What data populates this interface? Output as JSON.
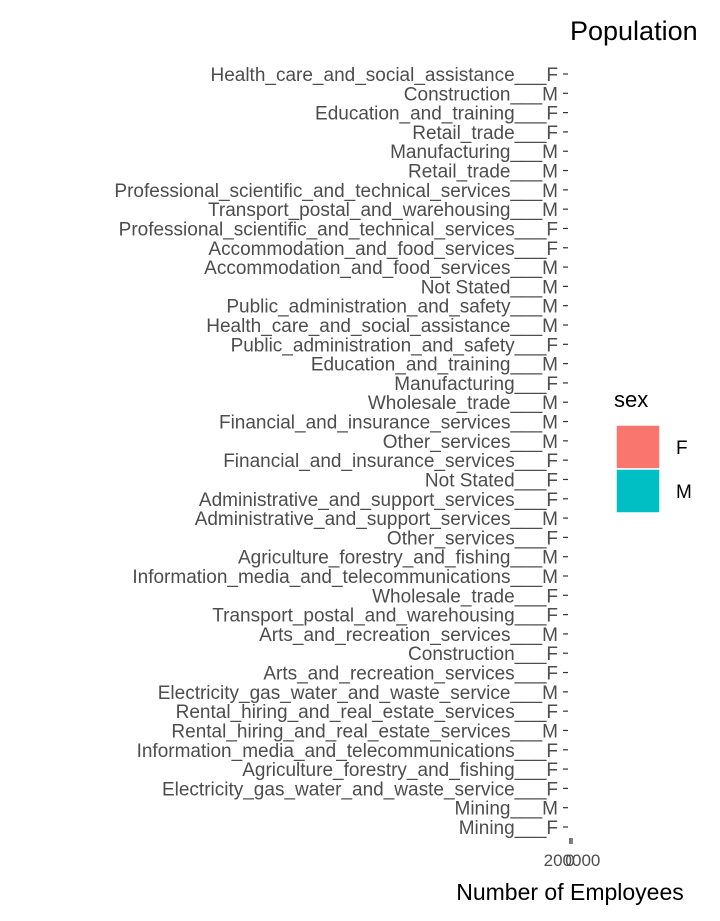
{
  "chart_data": {
    "type": "bar",
    "orientation": "horizontal",
    "title": "Population",
    "xlabel": "Number of Employees",
    "ylabel": "",
    "x_tick_labels": [
      "0",
      "200000"
    ],
    "xlim": [
      0,
      200000
    ],
    "grid": false,
    "legend": {
      "title": "sex",
      "placement": "right",
      "entries": [
        {
          "label": "F",
          "color": "#F8766D"
        },
        {
          "label": "M",
          "color": "#00BFC4"
        }
      ]
    },
    "categories": [
      "Health_care_and_social_assistance___F",
      "Construction___M",
      "Education_and_training___F",
      "Retail_trade___F",
      "Manufacturing___M",
      "Retail_trade___M",
      "Professional_scientific_and_technical_services___M",
      "Transport_postal_and_warehousing___M",
      "Professional_scientific_and_technical_services___F",
      "Accommodation_and_food_services___F",
      "Accommodation_and_food_services___M",
      "Not Stated___M",
      "Public_administration_and_safety___M",
      "Health_care_and_social_assistance___M",
      "Public_administration_and_safety___F",
      "Education_and_training___M",
      "Manufacturing___F",
      "Wholesale_trade___M",
      "Financial_and_insurance_services___M",
      "Other_services___M",
      "Financial_and_insurance_services___F",
      "Not Stated___F",
      "Administrative_and_support_services___F",
      "Administrative_and_support_services___M",
      "Other_services___F",
      "Agriculture_forestry_and_fishing___M",
      "Information_media_and_telecommunications___M",
      "Wholesale_trade___F",
      "Transport_postal_and_warehousing___F",
      "Arts_and_recreation_services___M",
      "Construction___F",
      "Arts_and_recreation_services___F",
      "Electricity_gas_water_and_waste_service___M",
      "Rental_hiring_and_real_estate_services___F",
      "Rental_hiring_and_real_estate_services___M",
      "Information_media_and_telecommunications___F",
      "Agriculture_forestry_and_fishing___F",
      "Electricity_gas_water_and_waste_service___F",
      "Mining___M",
      "Mining___F"
    ]
  }
}
